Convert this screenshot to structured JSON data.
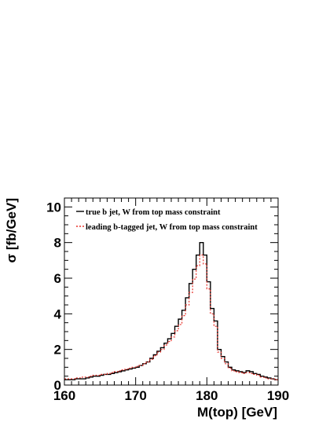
{
  "chart_data": {
    "type": "line",
    "xlabel": "M(top) [GeV]",
    "ylabel": "σ [fb/GeV]",
    "xlim": [
      160,
      190
    ],
    "ylim": [
      0,
      10.5
    ],
    "x_ticks": [
      "160",
      "170",
      "180",
      "190"
    ],
    "y_ticks": [
      "0",
      "2",
      "4",
      "6",
      "8",
      "10"
    ],
    "bin_edges": [
      160,
      160.5,
      161,
      161.5,
      162,
      162.5,
      163,
      163.5,
      164,
      164.5,
      165,
      165.5,
      166,
      166.5,
      167,
      167.5,
      168,
      168.5,
      169,
      169.5,
      170,
      170.5,
      171,
      171.5,
      172,
      172.5,
      173,
      173.5,
      174,
      174.5,
      175,
      175.5,
      176,
      176.5,
      177,
      177.5,
      178,
      178.5,
      179,
      179.5,
      180,
      180.5,
      181,
      181.5,
      182,
      182.5,
      183,
      183.5,
      184,
      184.5,
      185,
      185.5,
      186,
      186.5,
      187,
      187.5,
      188,
      188.5,
      189,
      189.5,
      190
    ],
    "legend_position": "top-left",
    "series": [
      {
        "name": "true b jet, W from top mass constraint",
        "color": "#000000",
        "style": "solid",
        "values": [
          0.3,
          0.3,
          0.3,
          0.35,
          0.35,
          0.35,
          0.4,
          0.45,
          0.5,
          0.5,
          0.55,
          0.6,
          0.6,
          0.65,
          0.7,
          0.75,
          0.8,
          0.85,
          0.9,
          0.95,
          1.0,
          1.1,
          1.2,
          1.3,
          1.5,
          1.7,
          1.9,
          2.1,
          2.35,
          2.6,
          2.9,
          3.3,
          3.7,
          4.2,
          4.9,
          5.7,
          6.5,
          7.3,
          8.0,
          7.3,
          5.8,
          4.3,
          3.6,
          2.0,
          1.6,
          1.3,
          1.0,
          0.85,
          0.8,
          0.75,
          0.7,
          0.8,
          0.75,
          0.65,
          0.6,
          0.5,
          0.45,
          0.4,
          0.35,
          0.3
        ]
      },
      {
        "name": "leading b-tagged jet, W from top mass constraint",
        "color": "#e8322b",
        "style": "dotted",
        "values": [
          0.35,
          0.35,
          0.35,
          0.4,
          0.4,
          0.45,
          0.45,
          0.5,
          0.55,
          0.55,
          0.6,
          0.6,
          0.65,
          0.7,
          0.75,
          0.8,
          0.85,
          0.9,
          0.95,
          1.0,
          1.05,
          1.1,
          1.2,
          1.3,
          1.45,
          1.65,
          1.85,
          2.0,
          2.25,
          2.45,
          2.7,
          3.05,
          3.4,
          3.9,
          4.5,
          5.2,
          5.95,
          6.7,
          7.3,
          6.8,
          5.4,
          4.0,
          3.3,
          1.85,
          1.5,
          1.2,
          0.95,
          0.8,
          0.75,
          0.7,
          0.65,
          0.7,
          0.65,
          0.6,
          0.55,
          0.45,
          0.4,
          0.35,
          0.35,
          0.3
        ]
      }
    ]
  }
}
